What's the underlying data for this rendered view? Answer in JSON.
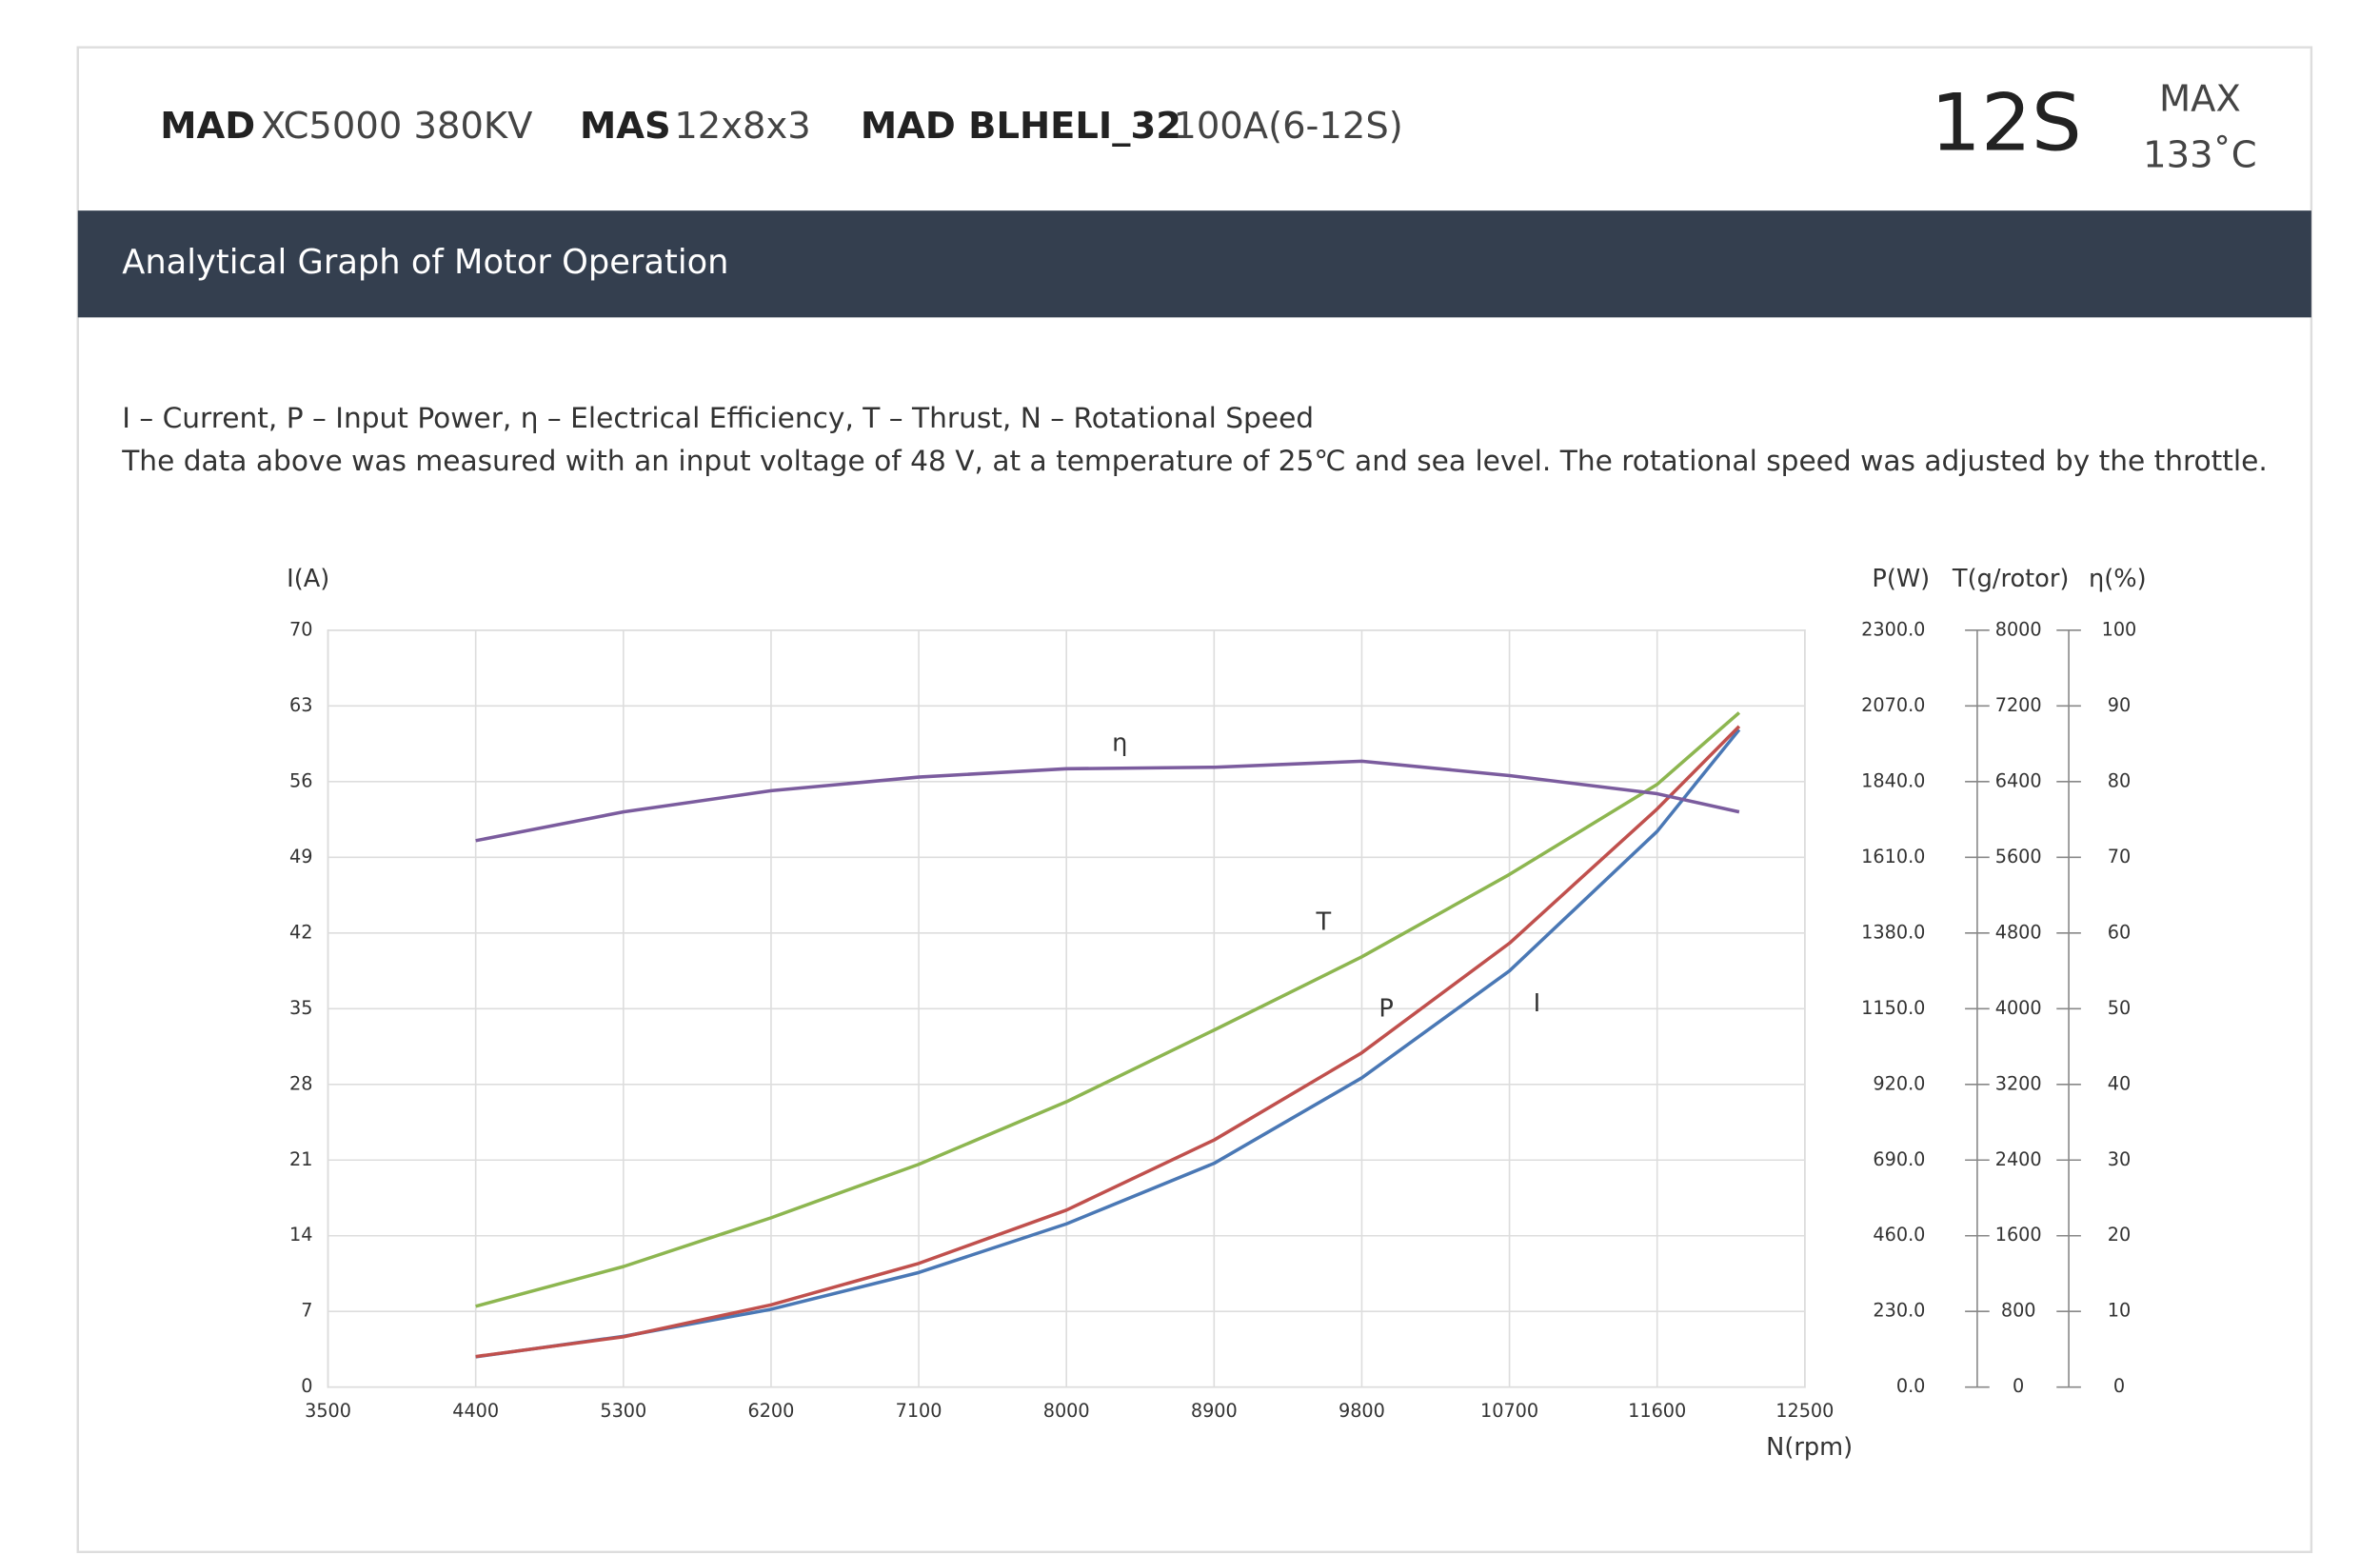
{
  "header": {
    "motor_brand": "MAD",
    "motor_model": "XC5000 380KV",
    "prop_brand": "MAS",
    "prop_model": "12x8x3",
    "esc_brand": "MAD BLHELI_32",
    "esc_model": "100A(6-12S)",
    "cells": "12S",
    "max_label": "MAX",
    "max_temp": "133˚C"
  },
  "section_title": "Analytical Graph of Motor Operation",
  "description": [
    "I – Current, P – Input Power, η – Electrical Efficiency, T – Thrust,   N – Rotational Speed",
    "The data above was measured with an input voltage of 48 V, at a temperature of 25℃ and sea level. The rotational speed was adjusted by the throttle."
  ],
  "chart_data": {
    "type": "line",
    "xlabel": "N(rpm)",
    "ylabel": "I(A)",
    "y2label": "P(W)",
    "y3label": "T(g/rotor)",
    "y4label": "η(%)",
    "x": [
      4400,
      5300,
      6200,
      7100,
      8000,
      8900,
      9800,
      10700,
      11600,
      12100
    ],
    "xlim": [
      3500,
      12500
    ],
    "xticks": [
      3500,
      4400,
      5300,
      6200,
      7100,
      8000,
      8900,
      9800,
      10700,
      11600,
      12500
    ],
    "ylim": [
      0,
      70
    ],
    "yticks": [
      0,
      7,
      14,
      21,
      28,
      35,
      42,
      49,
      56,
      63,
      70
    ],
    "y2lim": [
      0,
      2300
    ],
    "y2ticks": [
      {
        "value": 0,
        "label": "0.0"
      },
      {
        "value": 230,
        "label": "230.0"
      },
      {
        "value": 460,
        "label": "460.0"
      },
      {
        "value": 690,
        "label": "690.0"
      },
      {
        "value": 920,
        "label": "920.0"
      },
      {
        "value": 1150,
        "label": "1150.0"
      },
      {
        "value": 1380,
        "label": "1380.0"
      },
      {
        "value": 1610,
        "label": "1610.0"
      },
      {
        "value": 1840,
        "label": "1840.0"
      },
      {
        "value": 2070,
        "label": "2070.0"
      },
      {
        "value": 2300,
        "label": "2300.0"
      }
    ],
    "y3lim": [
      0,
      8000
    ],
    "y3ticks": [
      0,
      800,
      1600,
      2400,
      3200,
      4000,
      4800,
      5600,
      6400,
      7200,
      8000
    ],
    "y4lim": [
      0,
      100
    ],
    "y4ticks": [
      0,
      10,
      20,
      30,
      40,
      50,
      60,
      70,
      80,
      90,
      100
    ],
    "grid": true,
    "series": [
      {
        "name": "I",
        "color": "#4a78b5",
        "axis": "y",
        "values": [
          2.8,
          4.7,
          7.2,
          10.6,
          15.1,
          20.7,
          28.6,
          38.5,
          51.4,
          60.8
        ]
      },
      {
        "name": "P",
        "color": "#c0504d",
        "axis": "y2",
        "values": [
          93,
          153,
          250,
          376,
          538,
          751,
          1016,
          1349,
          1757,
          2008
        ]
      },
      {
        "name": "T",
        "color": "#8db650",
        "axis": "y3",
        "values": [
          855,
          1274,
          1790,
          2355,
          3016,
          3774,
          4548,
          5419,
          6371,
          7129
        ]
      },
      {
        "name": "η",
        "color": "#7b5c9e",
        "axis": "y4",
        "values": [
          72.2,
          76.0,
          78.8,
          80.6,
          81.7,
          81.9,
          82.7,
          80.8,
          78.4,
          76.0
        ]
      }
    ]
  }
}
